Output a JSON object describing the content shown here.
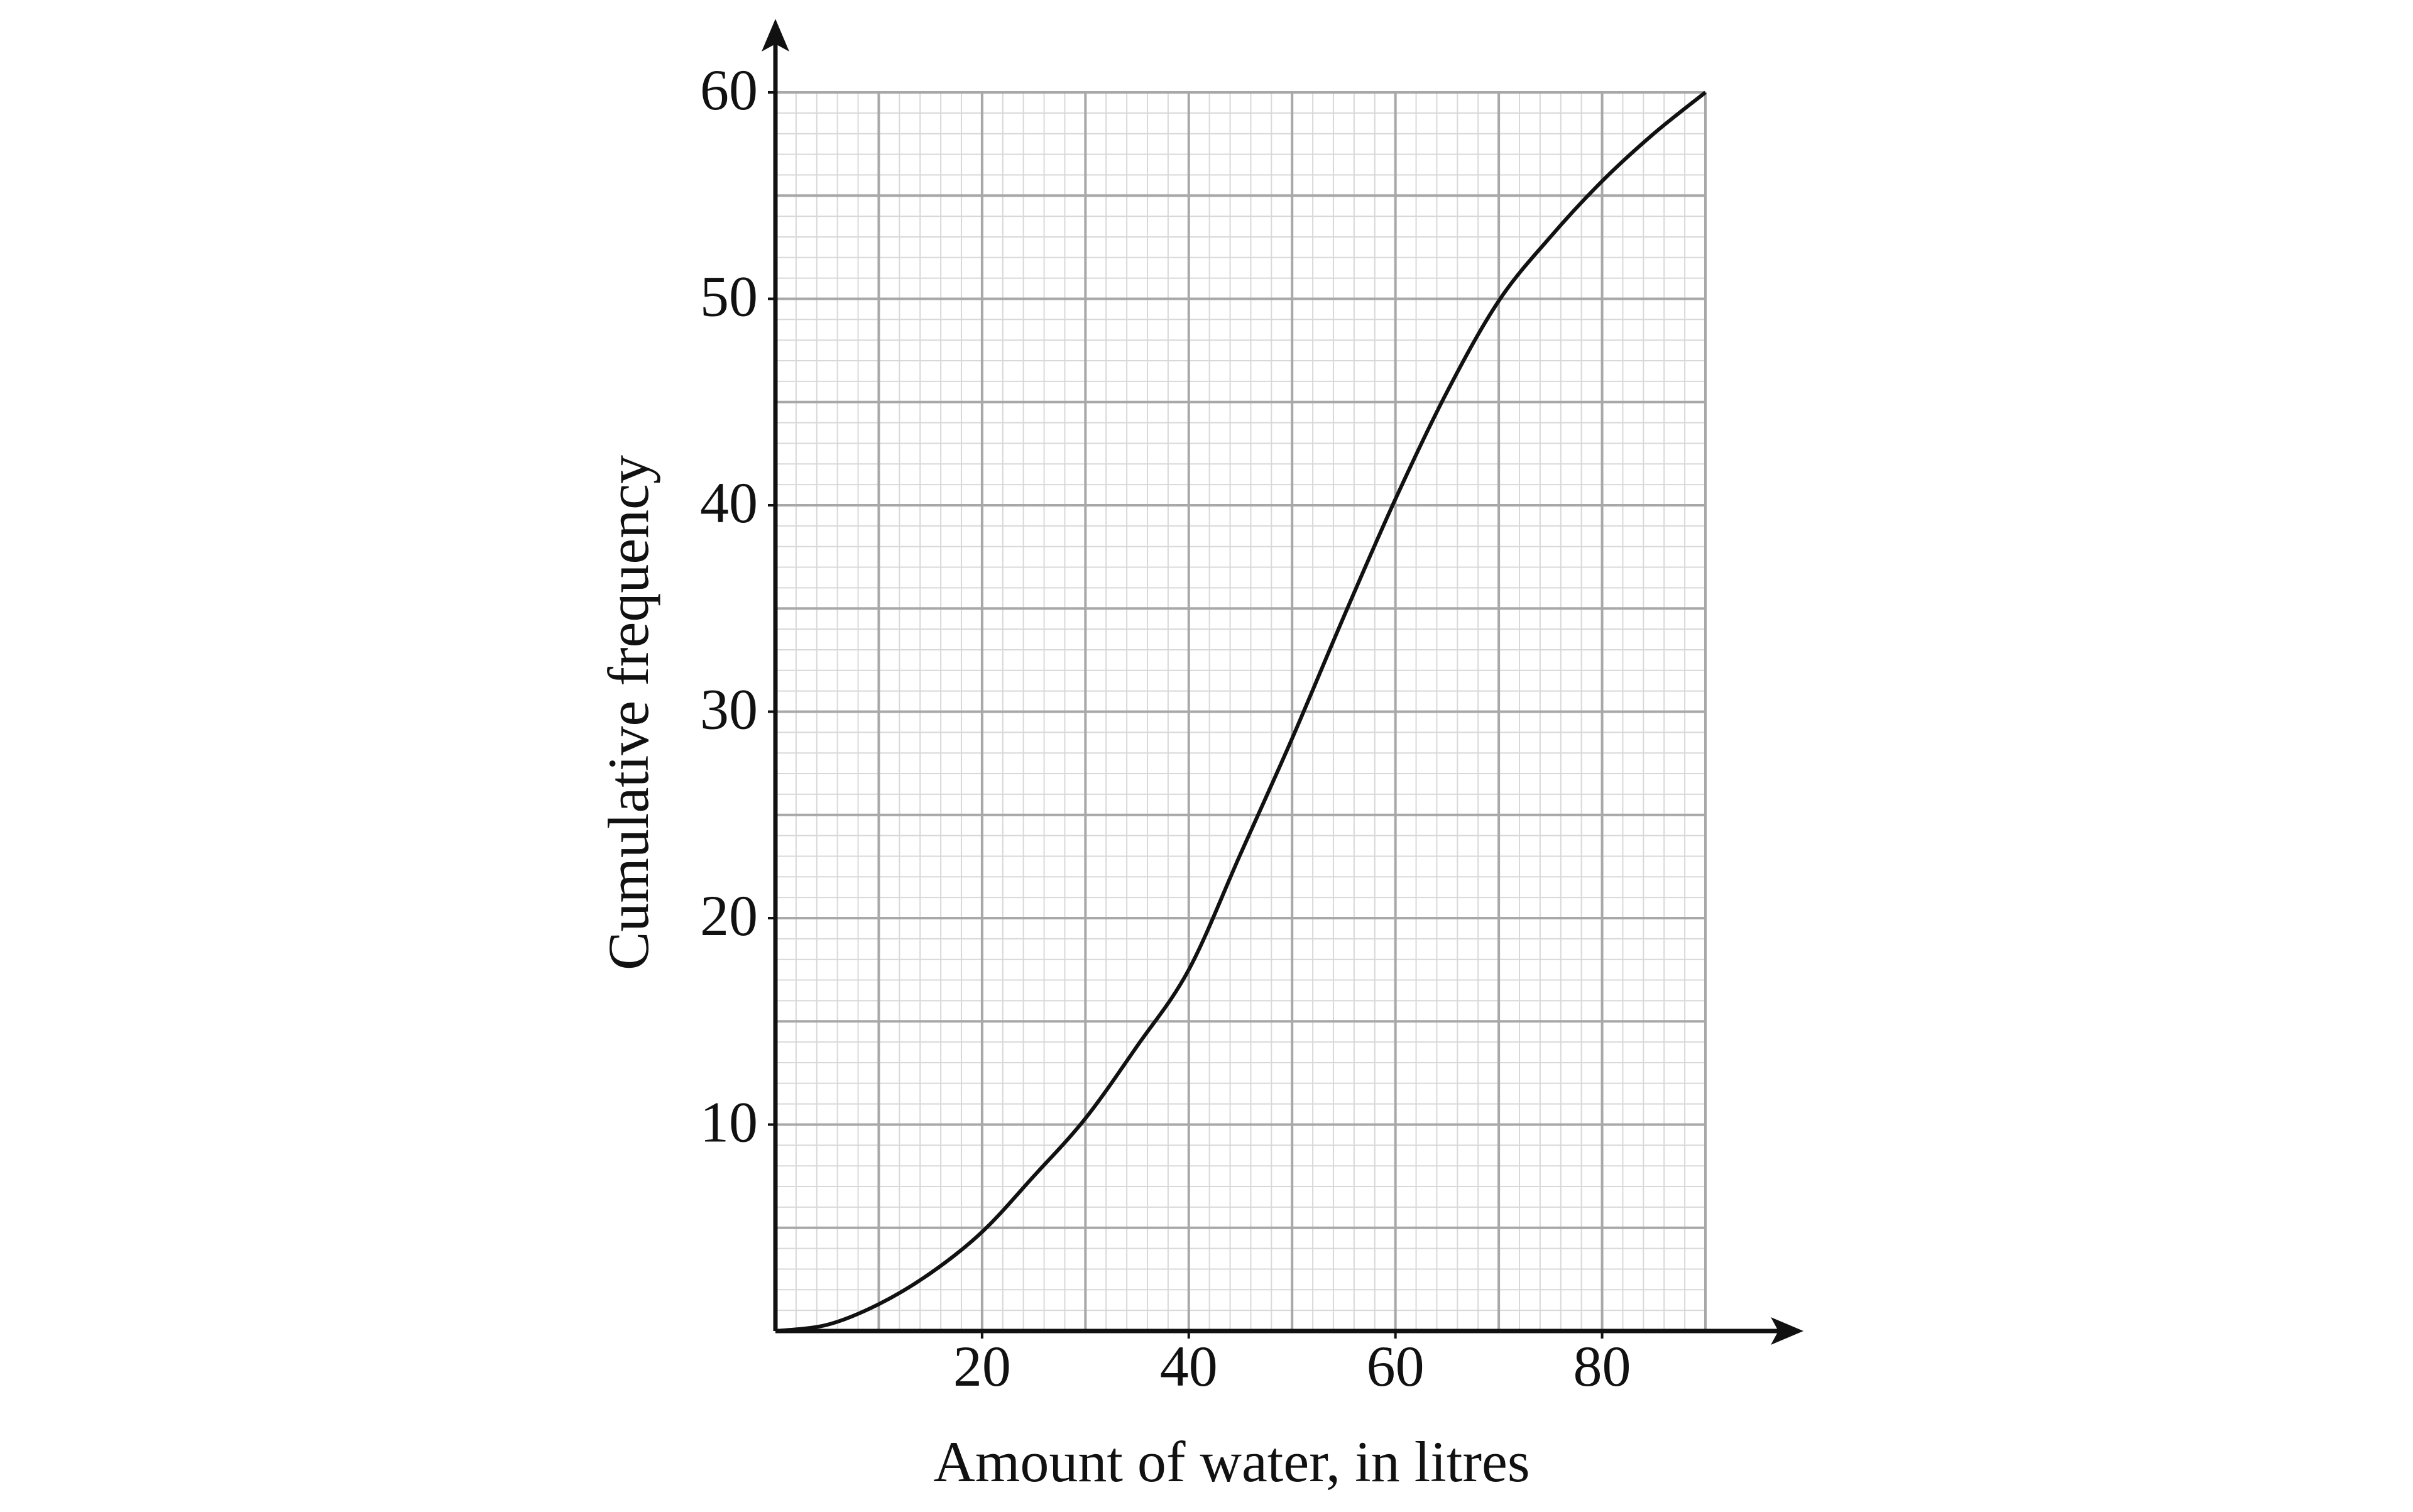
{
  "chart_data": {
    "type": "line",
    "x_label": "Amount of water, in litres",
    "y_label": "Cumulative frequency",
    "x": [
      0,
      5,
      10,
      15,
      20,
      25,
      30,
      35,
      40,
      45,
      50,
      55,
      60,
      65,
      70,
      75,
      80,
      85,
      90
    ],
    "series": [
      {
        "color": "#111111",
        "values": [
          0,
          0.3,
          1.3,
          2.8,
          4.8,
          7.5,
          10.3,
          13.8,
          17.5,
          23.1,
          28.7,
          34.6,
          40.3,
          45.5,
          49.9,
          53,
          55.7,
          58,
          60
        ]
      }
    ],
    "xlim": [
      0,
      90
    ],
    "ylim": [
      0,
      60
    ],
    "xticks": [
      20,
      40,
      60,
      80
    ],
    "yticks": [
      10,
      20,
      30,
      40,
      50,
      60
    ],
    "grid": {
      "major_x": 10,
      "major_y": 5,
      "minor_x": 2,
      "minor_y": 1
    }
  }
}
